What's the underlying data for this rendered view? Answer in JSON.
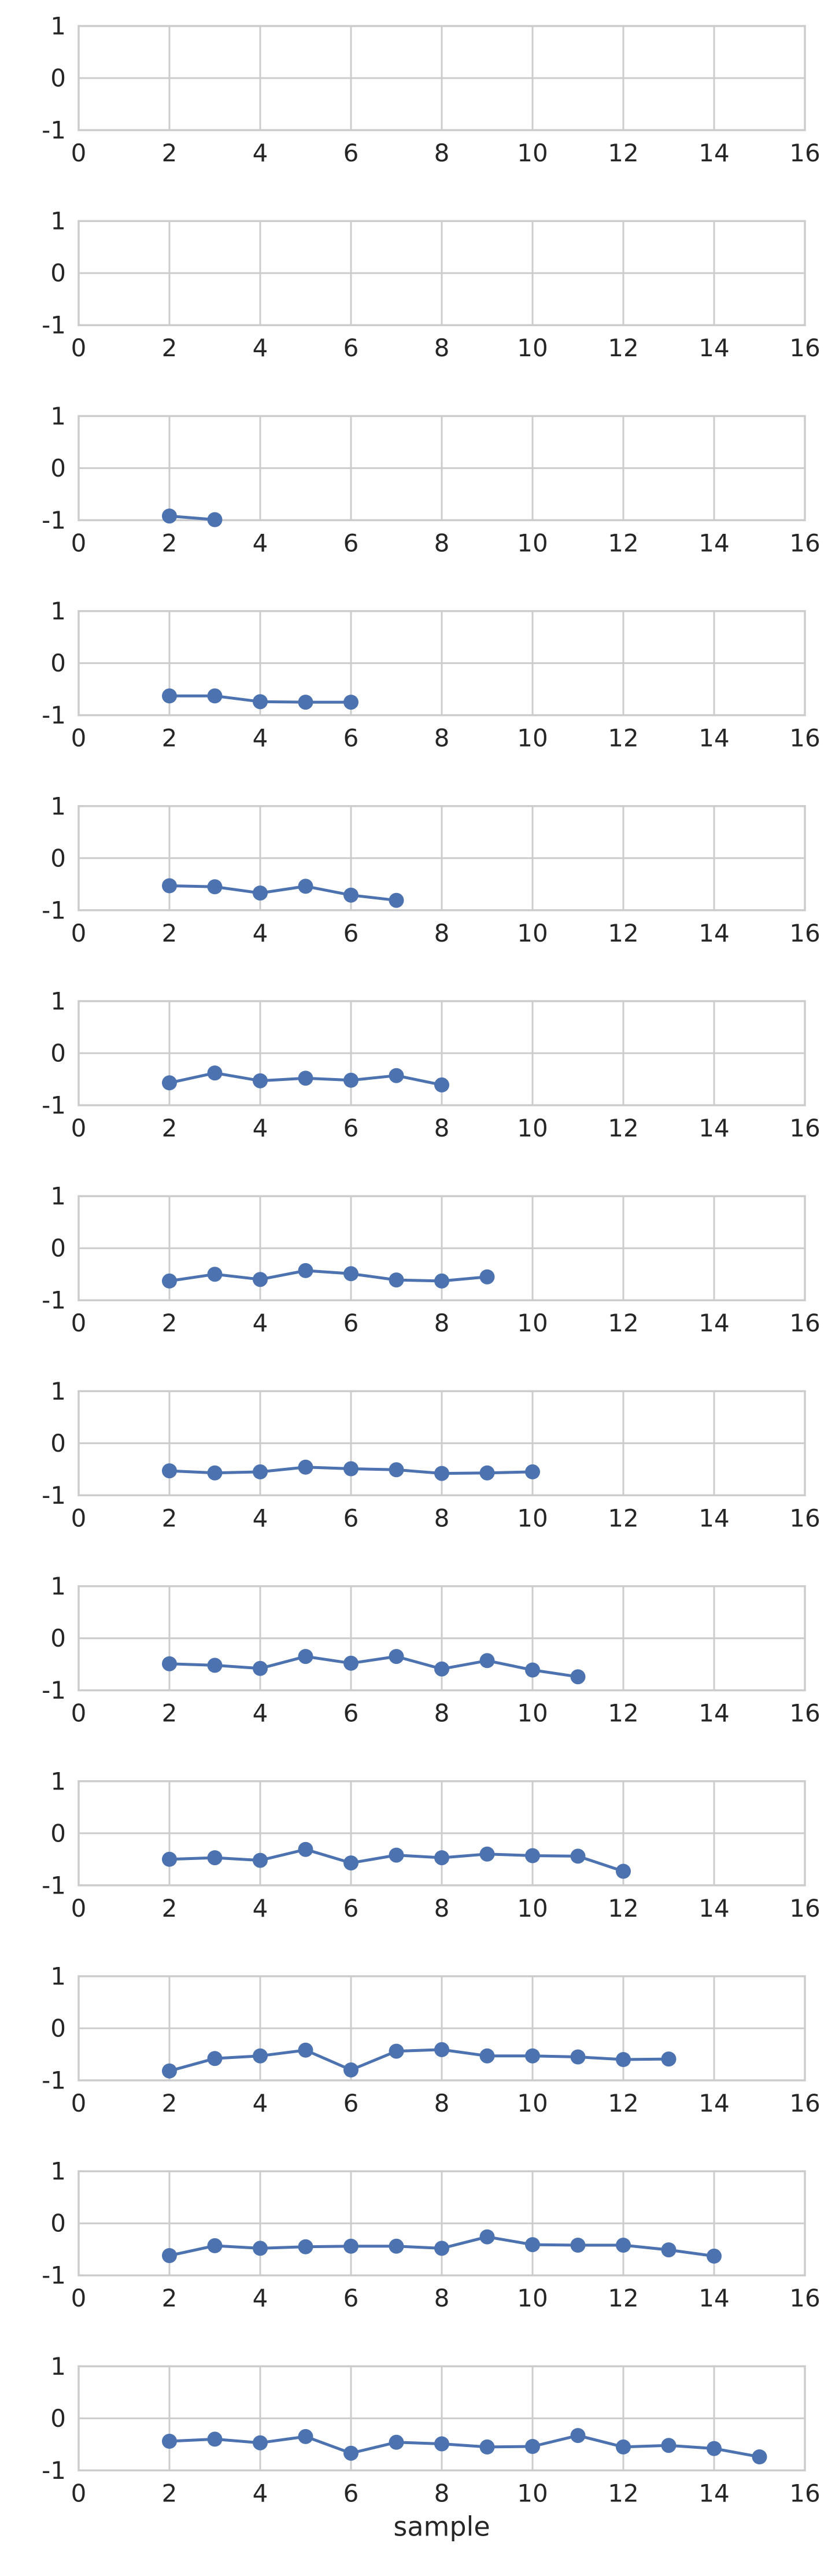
{
  "colors": {
    "series": "#4c72b0",
    "grid": "#cccccc",
    "spine": "#cccccc",
    "text": "#262626",
    "background": "#ffffff"
  },
  "chart_data": [
    {
      "type": "line",
      "xlim": [
        0,
        16
      ],
      "ylim": [
        -1,
        1
      ],
      "grid": true,
      "xticks": [
        "0",
        "2",
        "4",
        "6",
        "8",
        "10",
        "12",
        "14",
        "16"
      ],
      "yticks": [
        "1",
        "0",
        "-1"
      ],
      "xlabel": "",
      "ylabel": "",
      "series": [
        {
          "x": [],
          "y": []
        }
      ]
    },
    {
      "type": "line",
      "xlim": [
        0,
        16
      ],
      "ylim": [
        -1,
        1
      ],
      "grid": true,
      "xticks": [
        "0",
        "2",
        "4",
        "6",
        "8",
        "10",
        "12",
        "14",
        "16"
      ],
      "yticks": [
        "1",
        "0",
        "-1"
      ],
      "xlabel": "",
      "ylabel": "",
      "series": [
        {
          "x": [],
          "y": []
        }
      ]
    },
    {
      "type": "line",
      "xlim": [
        0,
        16
      ],
      "ylim": [
        -1,
        1
      ],
      "grid": true,
      "xticks": [
        "0",
        "2",
        "4",
        "6",
        "8",
        "10",
        "12",
        "14",
        "16"
      ],
      "yticks": [
        "1",
        "0",
        "-1"
      ],
      "xlabel": "",
      "ylabel": "",
      "series": [
        {
          "x": [
            2,
            3
          ],
          "y": [
            -0.92,
            -0.99
          ]
        }
      ]
    },
    {
      "type": "line",
      "xlim": [
        0,
        16
      ],
      "ylim": [
        -1,
        1
      ],
      "grid": true,
      "xticks": [
        "0",
        "2",
        "4",
        "6",
        "8",
        "10",
        "12",
        "14",
        "16"
      ],
      "yticks": [
        "1",
        "0",
        "-1"
      ],
      "xlabel": "",
      "ylabel": "",
      "series": [
        {
          "x": [
            2,
            3,
            4,
            5,
            6
          ],
          "y": [
            -0.63,
            -0.63,
            -0.74,
            -0.75,
            -0.75
          ]
        }
      ]
    },
    {
      "type": "line",
      "xlim": [
        0,
        16
      ],
      "ylim": [
        -1,
        1
      ],
      "grid": true,
      "xticks": [
        "0",
        "2",
        "4",
        "6",
        "8",
        "10",
        "12",
        "14",
        "16"
      ],
      "yticks": [
        "1",
        "0",
        "-1"
      ],
      "xlabel": "",
      "ylabel": "",
      "series": [
        {
          "x": [
            2,
            3,
            4,
            5,
            6,
            7
          ],
          "y": [
            -0.53,
            -0.55,
            -0.67,
            -0.54,
            -0.71,
            -0.81
          ]
        }
      ]
    },
    {
      "type": "line",
      "xlim": [
        0,
        16
      ],
      "ylim": [
        -1,
        1
      ],
      "grid": true,
      "xticks": [
        "0",
        "2",
        "4",
        "6",
        "8",
        "10",
        "12",
        "14",
        "16"
      ],
      "yticks": [
        "1",
        "0",
        "-1"
      ],
      "xlabel": "",
      "ylabel": "",
      "series": [
        {
          "x": [
            2,
            3,
            4,
            5,
            6,
            7,
            8
          ],
          "y": [
            -0.57,
            -0.38,
            -0.53,
            -0.48,
            -0.52,
            -0.43,
            -0.61
          ]
        }
      ]
    },
    {
      "type": "line",
      "xlim": [
        0,
        16
      ],
      "ylim": [
        -1,
        1
      ],
      "grid": true,
      "xticks": [
        "0",
        "2",
        "4",
        "6",
        "8",
        "10",
        "12",
        "14",
        "16"
      ],
      "yticks": [
        "1",
        "0",
        "-1"
      ],
      "xlabel": "",
      "ylabel": "",
      "series": [
        {
          "x": [
            2,
            3,
            4,
            5,
            6,
            7,
            8,
            9
          ],
          "y": [
            -0.63,
            -0.5,
            -0.6,
            -0.43,
            -0.49,
            -0.61,
            -0.63,
            -0.55
          ]
        }
      ]
    },
    {
      "type": "line",
      "xlim": [
        0,
        16
      ],
      "ylim": [
        -1,
        1
      ],
      "grid": true,
      "xticks": [
        "0",
        "2",
        "4",
        "6",
        "8",
        "10",
        "12",
        "14",
        "16"
      ],
      "yticks": [
        "1",
        "0",
        "-1"
      ],
      "xlabel": "",
      "ylabel": "",
      "series": [
        {
          "x": [
            2,
            3,
            4,
            5,
            6,
            7,
            8,
            9,
            10
          ],
          "y": [
            -0.53,
            -0.57,
            -0.55,
            -0.46,
            -0.49,
            -0.51,
            -0.58,
            -0.57,
            -0.55
          ]
        }
      ]
    },
    {
      "type": "line",
      "xlim": [
        0,
        16
      ],
      "ylim": [
        -1,
        1
      ],
      "grid": true,
      "xticks": [
        "0",
        "2",
        "4",
        "6",
        "8",
        "10",
        "12",
        "14",
        "16"
      ],
      "yticks": [
        "1",
        "0",
        "-1"
      ],
      "xlabel": "",
      "ylabel": "",
      "series": [
        {
          "x": [
            2,
            3,
            4,
            5,
            6,
            7,
            8,
            9,
            10,
            11
          ],
          "y": [
            -0.49,
            -0.52,
            -0.58,
            -0.35,
            -0.48,
            -0.35,
            -0.59,
            -0.43,
            -0.61,
            -0.74
          ]
        }
      ]
    },
    {
      "type": "line",
      "xlim": [
        0,
        16
      ],
      "ylim": [
        -1,
        1
      ],
      "grid": true,
      "xticks": [
        "0",
        "2",
        "4",
        "6",
        "8",
        "10",
        "12",
        "14",
        "16"
      ],
      "yticks": [
        "1",
        "0",
        "-1"
      ],
      "xlabel": "",
      "ylabel": "",
      "series": [
        {
          "x": [
            2,
            3,
            4,
            5,
            6,
            7,
            8,
            9,
            10,
            11,
            12
          ],
          "y": [
            -0.5,
            -0.47,
            -0.52,
            -0.31,
            -0.57,
            -0.42,
            -0.47,
            -0.4,
            -0.43,
            -0.44,
            -0.73
          ]
        }
      ]
    },
    {
      "type": "line",
      "xlim": [
        0,
        16
      ],
      "ylim": [
        -1,
        1
      ],
      "grid": true,
      "xticks": [
        "0",
        "2",
        "4",
        "6",
        "8",
        "10",
        "12",
        "14",
        "16"
      ],
      "yticks": [
        "1",
        "0",
        "-1"
      ],
      "xlabel": "",
      "ylabel": "",
      "series": [
        {
          "x": [
            2,
            3,
            4,
            5,
            6,
            7,
            8,
            9,
            10,
            11,
            12,
            13
          ],
          "y": [
            -0.82,
            -0.58,
            -0.53,
            -0.42,
            -0.8,
            -0.44,
            -0.41,
            -0.53,
            -0.53,
            -0.55,
            -0.6,
            -0.59
          ]
        }
      ]
    },
    {
      "type": "line",
      "xlim": [
        0,
        16
      ],
      "ylim": [
        -1,
        1
      ],
      "grid": true,
      "xticks": [
        "0",
        "2",
        "4",
        "6",
        "8",
        "10",
        "12",
        "14",
        "16"
      ],
      "yticks": [
        "1",
        "0",
        "-1"
      ],
      "xlabel": "",
      "ylabel": "",
      "series": [
        {
          "x": [
            2,
            3,
            4,
            5,
            6,
            7,
            8,
            9,
            10,
            11,
            12,
            13,
            14
          ],
          "y": [
            -0.62,
            -0.43,
            -0.48,
            -0.45,
            -0.44,
            -0.44,
            -0.48,
            -0.26,
            -0.41,
            -0.42,
            -0.42,
            -0.51,
            -0.63
          ]
        }
      ]
    },
    {
      "type": "line",
      "xlim": [
        0,
        16
      ],
      "ylim": [
        -1,
        1
      ],
      "grid": true,
      "xticks": [
        "0",
        "2",
        "4",
        "6",
        "8",
        "10",
        "12",
        "14",
        "16"
      ],
      "yticks": [
        "1",
        "0",
        "-1"
      ],
      "xlabel": "sample",
      "ylabel": "",
      "series": [
        {
          "x": [
            2,
            3,
            4,
            5,
            6,
            7,
            8,
            9,
            10,
            11,
            12,
            13,
            14,
            15
          ],
          "y": [
            -0.44,
            -0.4,
            -0.47,
            -0.35,
            -0.67,
            -0.46,
            -0.49,
            -0.55,
            -0.54,
            -0.33,
            -0.55,
            -0.52,
            -0.58,
            -0.74
          ]
        }
      ]
    }
  ]
}
